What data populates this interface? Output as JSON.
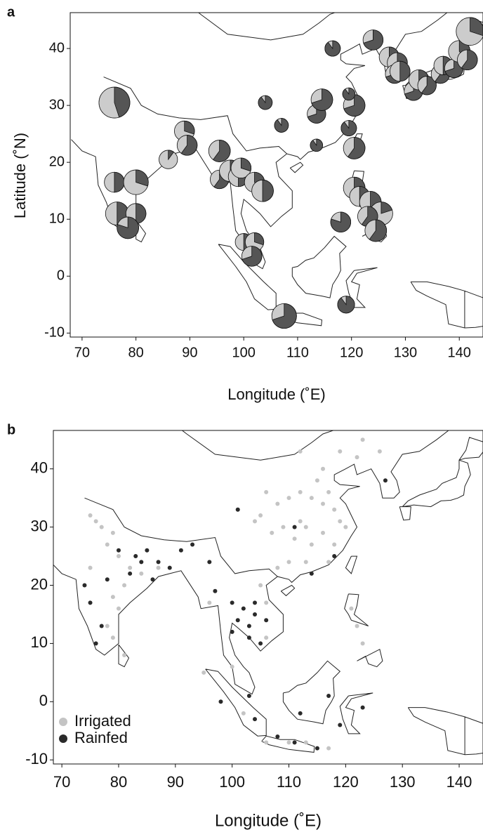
{
  "chart_data": [
    {
      "type": "pie",
      "panel_label": "a",
      "x_label": "Longitude (˚E)",
      "y_label": "Latitude (˚N)",
      "xlim": [
        67.8,
        144.4
      ],
      "ylim": [
        -10.7,
        46.3
      ],
      "xticks": [
        70,
        80,
        90,
        100,
        110,
        120,
        130,
        140
      ],
      "yticks": [
        -10,
        0,
        10,
        20,
        30,
        40
      ],
      "colors": [
        "#555555",
        "#cccccc"
      ],
      "x": [
        76,
        76,
        80,
        76.5,
        80,
        78.5,
        86,
        89,
        89.5,
        95.5,
        95.5,
        97.5,
        99,
        99.5,
        102,
        103.5,
        100,
        102,
        101.5,
        107.5,
        104,
        107,
        113.5,
        114.5,
        113.5,
        116.5,
        119.5,
        120.5,
        119.5,
        120.5,
        124,
        118,
        120.5,
        121.5,
        123.5,
        125.5,
        123,
        124.5,
        119,
        127,
        128.5,
        128,
        129,
        131.5,
        132.5,
        134,
        136.5,
        137,
        139,
        140,
        141.5,
        142
      ],
      "y": [
        30.5,
        16.5,
        16.5,
        11,
        11,
        8.5,
        20.5,
        25.5,
        23,
        22,
        17,
        18.5,
        17.5,
        19,
        16.5,
        15,
        6,
        6,
        3.5,
        -7,
        30.5,
        26.5,
        28.5,
        31,
        23,
        40,
        26,
        30,
        32,
        22.5,
        41.5,
        9.5,
        15.5,
        14,
        13,
        11,
        10.5,
        8,
        -5,
        38.5,
        37.5,
        35.5,
        36,
        32.5,
        34.5,
        33.5,
        35.5,
        37,
        36.5,
        39.5,
        38,
        43
      ],
      "sizes": [
        2.0,
        1.3,
        1.6,
        1.5,
        1.3,
        1.4,
        1.2,
        1.3,
        1.3,
        1.4,
        1.2,
        1.4,
        1.3,
        1.3,
        1.3,
        1.4,
        1.1,
        1.2,
        1.3,
        1.6,
        0.9,
        0.9,
        1.2,
        1.4,
        0.8,
        1.0,
        1.0,
        1.4,
        0.8,
        1.4,
        1.3,
        1.3,
        1.4,
        1.3,
        1.4,
        1.5,
        1.3,
        1.4,
        1.1,
        1.3,
        1.3,
        1.2,
        1.3,
        1.2,
        1.3,
        1.2,
        1.2,
        1.2,
        1.2,
        1.4,
        1.3,
        1.8
      ],
      "shares": [
        0.45,
        0.5,
        0.3,
        0.5,
        0.5,
        0.8,
        0.1,
        0.3,
        0.6,
        0.6,
        0.6,
        0.5,
        0.5,
        0.3,
        0.4,
        0.5,
        0.5,
        0.3,
        0.7,
        0.7,
        0.9,
        0.9,
        0.7,
        0.7,
        0.9,
        0.9,
        0.9,
        0.7,
        0.9,
        0.6,
        0.7,
        0.8,
        0.3,
        0.5,
        0.5,
        0.2,
        0.6,
        0.6,
        0.9,
        0.3,
        0.6,
        0.7,
        0.5,
        0.7,
        0.5,
        0.6,
        0.6,
        0.5,
        0.7,
        0.4,
        0.6,
        0.3
      ]
    },
    {
      "type": "scatter",
      "panel_label": "b",
      "x_label": "Longitude (˚E)",
      "xlim": [
        68.5,
        144.2
      ],
      "ylim": [
        -10.7,
        46.6
      ],
      "xticks": [
        70,
        80,
        90,
        100,
        110,
        120,
        130,
        140
      ],
      "yticks": [
        -10,
        0,
        10,
        20,
        30,
        40
      ],
      "legend": "lower left",
      "series": [
        {
          "name": "Irrigated",
          "color": "#c4c4c4",
          "x": [
            105,
            108,
            110,
            112,
            114,
            116,
            117,
            115,
            118,
            119,
            113,
            111,
            114,
            116,
            118,
            120,
            109,
            107,
            104,
            106,
            112,
            110,
            113,
            108,
            116,
            122,
            123,
            119,
            112,
            126,
            101,
            117,
            75,
            76,
            77,
            79,
            78,
            80,
            82,
            81,
            79,
            80,
            78,
            79,
            81,
            84,
            87,
            75,
            106,
            105,
            106,
            96,
            100,
            106,
            110,
            113,
            117,
            121,
            123,
            122,
            95,
            102
          ],
          "y": [
            32,
            34,
            35,
            36,
            35,
            34,
            36,
            38,
            33,
            31,
            30,
            28,
            27,
            29,
            27,
            30,
            30,
            29,
            31,
            36,
            31,
            24,
            24,
            23,
            40,
            42,
            45,
            43,
            43,
            43,
            33,
            24,
            32,
            31,
            30,
            29,
            27,
            25,
            23,
            20,
            18,
            16,
            13,
            11,
            8,
            22,
            23,
            23,
            17,
            20,
            11,
            17,
            6,
            -7,
            -7,
            -7,
            -8,
            16,
            10,
            13,
            5,
            -2
          ]
        },
        {
          "name": "Rainfed",
          "color": "#2a2a2a",
          "x": [
            80,
            83,
            85,
            87,
            89,
            82,
            86,
            84,
            91,
            93,
            78,
            75,
            77,
            76,
            74,
            100,
            102,
            104,
            103,
            101,
            104,
            106,
            103,
            100,
            105,
            97,
            96,
            98,
            103,
            104,
            108,
            111,
            115,
            119,
            117,
            112,
            123,
            127,
            114,
            118,
            101,
            111
          ],
          "y": [
            26,
            25,
            26,
            24,
            23,
            22,
            21,
            24,
            26,
            27,
            21,
            17,
            13,
            10,
            20,
            17,
            16,
            15,
            13,
            14,
            17,
            14,
            11,
            12,
            10,
            19,
            24,
            0,
            1,
            -3,
            -6,
            -7,
            -8,
            -4,
            1,
            -2,
            -1,
            38,
            22,
            25,
            33,
            30
          ]
        }
      ]
    }
  ]
}
